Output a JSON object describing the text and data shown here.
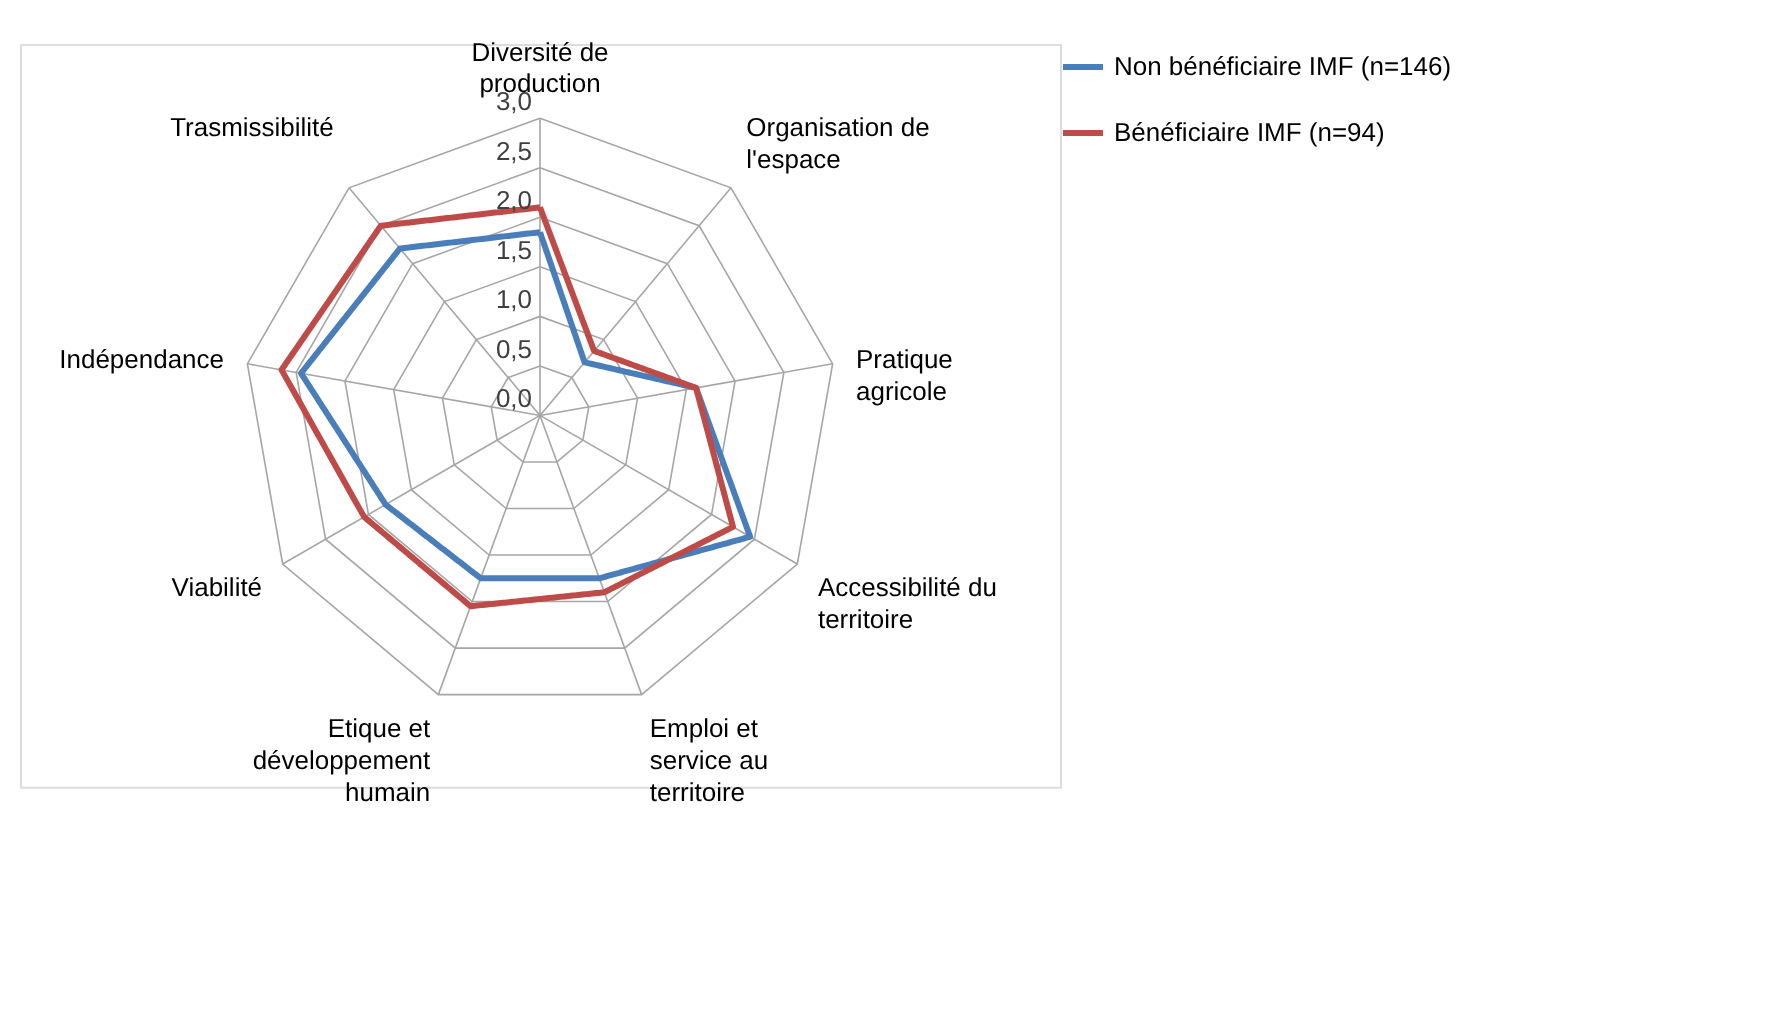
{
  "chart_data": {
    "type": "radar",
    "categories": [
      "Diversité de production",
      "Organisation de l'espace",
      "Pratique agricole",
      "Accessibilité du territoire",
      "Emploi et service au territoire",
      "Etique et développement humain",
      "Viabilité",
      "Indépendance",
      "Trasmissibilité"
    ],
    "series": [
      {
        "name": "Non bénéficiaire IMF (n=146)",
        "color": "#4a7ebb",
        "values": [
          1.85,
          0.7,
          1.6,
          2.45,
          1.75,
          1.75,
          1.8,
          2.45,
          2.2
        ]
      },
      {
        "name": "Bénéficiaire IMF (n=94)",
        "color": "#be4b48",
        "values": [
          2.1,
          0.85,
          1.6,
          2.25,
          1.9,
          2.05,
          2.05,
          2.65,
          2.5
        ]
      }
    ],
    "ylim": [
      0,
      3
    ],
    "yticks": [
      {
        "value": 0,
        "label": "0,0"
      },
      {
        "value": 0.5,
        "label": "0,5"
      },
      {
        "value": 1,
        "label": "1,0"
      },
      {
        "value": 1.5,
        "label": "1,5"
      },
      {
        "value": 2,
        "label": "2,0"
      },
      {
        "value": 2.5,
        "label": "2,5"
      },
      {
        "value": 3,
        "label": "3,0"
      }
    ],
    "grid": true,
    "legend": "right",
    "marker": "none",
    "line_style": "solid"
  }
}
